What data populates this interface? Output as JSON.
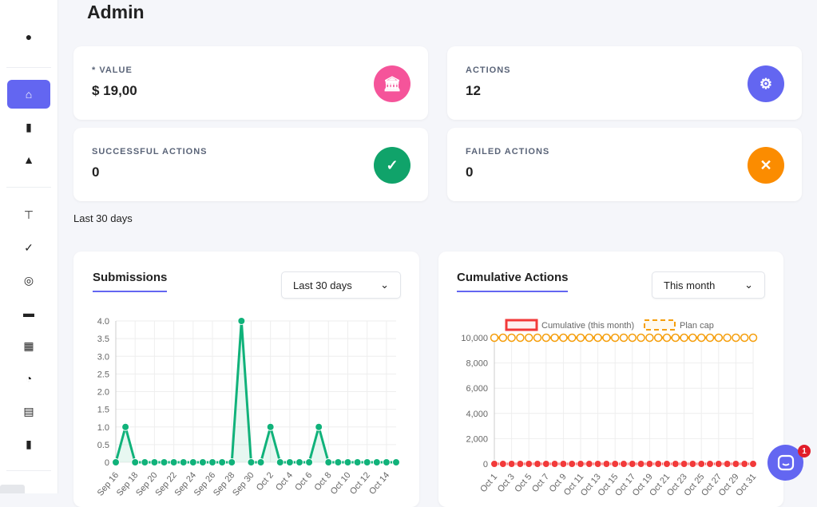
{
  "page": {
    "title": "Admin",
    "note": "Last 30 days"
  },
  "sidebar": {
    "items": [
      {
        "icon": "user-circle-icon",
        "glyph": "●"
      },
      {
        "icon": "home-icon",
        "glyph": "⌂",
        "active": true
      },
      {
        "icon": "file-code-icon",
        "glyph": "▮"
      },
      {
        "icon": "binoculars-icon",
        "glyph": "▲"
      },
      {
        "icon": "thumbtack-icon",
        "glyph": "⊤"
      },
      {
        "icon": "check-double-icon",
        "glyph": "✓"
      },
      {
        "icon": "bullseye-icon",
        "glyph": "◎"
      },
      {
        "icon": "calendar-icon",
        "glyph": "▬"
      },
      {
        "icon": "gift-icon",
        "glyph": "▦"
      },
      {
        "icon": "rss-icon",
        "glyph": "◔"
      },
      {
        "icon": "newspaper-icon",
        "glyph": "▤"
      },
      {
        "icon": "file-icon",
        "glyph": "▮"
      }
    ]
  },
  "stats": [
    {
      "label": "* VALUE",
      "value": "$ 19,00",
      "icon": "bank-icon",
      "glyph": "🏛",
      "color": "#f5549a"
    },
    {
      "label": "ACTIONS",
      "value": "12",
      "icon": "user-gear-icon",
      "glyph": "⚙",
      "color": "#6366f1"
    },
    {
      "label": "SUCCESSFUL ACTIONS",
      "value": "0",
      "icon": "check-icon",
      "glyph": "✓",
      "color": "#10a36a"
    },
    {
      "label": "FAILED ACTIONS",
      "value": "0",
      "icon": "close-icon",
      "glyph": "✕",
      "color": "#fb8c00"
    }
  ],
  "submissions": {
    "title": "Submissions",
    "range": "Last 30 days"
  },
  "cumulative": {
    "title": "Cumulative Actions",
    "range": "This month"
  },
  "chat": {
    "badge": "1"
  },
  "chart_data": [
    {
      "type": "area",
      "ylim": [
        0,
        4
      ],
      "yticks": [
        "0",
        "0.5",
        "1.0",
        "1.5",
        "2.0",
        "2.5",
        "3.0",
        "3.5",
        "4.0"
      ],
      "color": "#10b27a",
      "x": [
        "Sep 16",
        "Sep 17",
        "Sep 18",
        "Sep 19",
        "Sep 20",
        "Sep 21",
        "Sep 22",
        "Sep 23",
        "Sep 24",
        "Sep 25",
        "Sep 26",
        "Sep 27",
        "Sep 28",
        "Sep 29",
        "Sep 30",
        "Oct 1",
        "Oct 2",
        "Oct 3",
        "Oct 4",
        "Oct 5",
        "Oct 6",
        "Oct 7",
        "Oct 8",
        "Oct 9",
        "Oct 10",
        "Oct 11",
        "Oct 12",
        "Oct 13",
        "Oct 14",
        "Oct 15"
      ],
      "values": [
        0,
        1,
        0,
        0,
        0,
        0,
        0,
        0,
        0,
        0,
        0,
        0,
        0,
        4,
        0,
        0,
        1,
        0,
        0,
        0,
        0,
        1,
        0,
        0,
        0,
        0,
        0,
        0,
        0,
        0
      ],
      "grid": true
    },
    {
      "type": "line",
      "ylim": [
        0,
        10000
      ],
      "yticks": [
        "0",
        "2,000",
        "4,000",
        "6,000",
        "8,000",
        "10,000"
      ],
      "legend": "top",
      "x": [
        "Oct 1",
        "Oct 2",
        "Oct 3",
        "Oct 4",
        "Oct 5",
        "Oct 6",
        "Oct 7",
        "Oct 8",
        "Oct 9",
        "Oct 10",
        "Oct 11",
        "Oct 12",
        "Oct 13",
        "Oct 14",
        "Oct 15",
        "Oct 16",
        "Oct 17",
        "Oct 18",
        "Oct 19",
        "Oct 20",
        "Oct 21",
        "Oct 22",
        "Oct 23",
        "Oct 24",
        "Oct 25",
        "Oct 26",
        "Oct 27",
        "Oct 28",
        "Oct 29",
        "Oct 30",
        "Oct 31"
      ],
      "series": [
        {
          "name": "Cumulative (this month)",
          "color": "#f23a3a",
          "values": [
            0,
            0,
            0,
            0,
            0,
            0,
            0,
            0,
            0,
            0,
            0,
            0,
            0,
            0,
            0,
            0,
            0,
            0,
            0,
            0,
            0,
            0,
            0,
            0,
            0,
            0,
            0,
            0,
            0,
            0,
            0
          ]
        },
        {
          "name": "Plan cap",
          "color": "#f59e0b",
          "dashed": true,
          "values": [
            10000,
            10000,
            10000,
            10000,
            10000,
            10000,
            10000,
            10000,
            10000,
            10000,
            10000,
            10000,
            10000,
            10000,
            10000,
            10000,
            10000,
            10000,
            10000,
            10000,
            10000,
            10000,
            10000,
            10000,
            10000,
            10000,
            10000,
            10000,
            10000,
            10000,
            10000
          ]
        }
      ],
      "grid": true
    }
  ]
}
